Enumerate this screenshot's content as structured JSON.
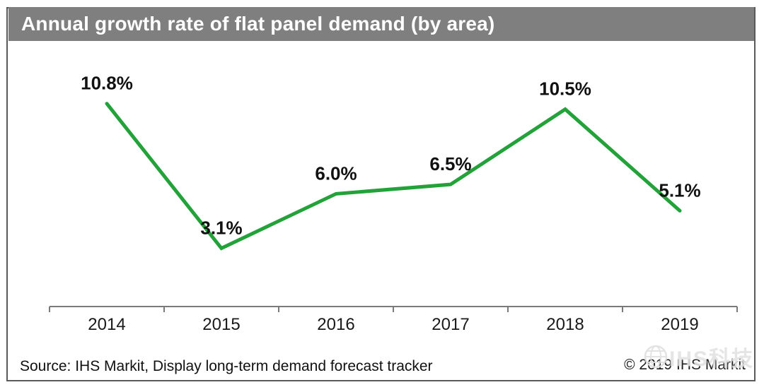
{
  "header": {
    "title": "Annual growth rate of flat panel demand (by area)",
    "bg_color": "#7f7f7f",
    "text_color": "#ffffff"
  },
  "chart_data": {
    "type": "line",
    "categories": [
      "2014",
      "2015",
      "2016",
      "2017",
      "2018",
      "2019"
    ],
    "values": [
      10.8,
      3.1,
      6.0,
      6.5,
      10.5,
      5.1
    ],
    "point_labels": [
      "10.8%",
      "3.1%",
      "6.0%",
      "6.5%",
      "10.5%",
      "5.1%"
    ],
    "title": "Annual growth rate of flat panel demand (by area)",
    "xlabel": "",
    "ylabel": "",
    "ylim": [
      0,
      12
    ],
    "grid": false,
    "legend": "none",
    "line_color": "#23a23a",
    "axis_color": "#7a7a7a",
    "label_color": "#111111",
    "tick_label_color": "#1a1a1a"
  },
  "footer": {
    "source": "Source: IHS Markit, Display long-term demand forecast tracker",
    "copyright": "© 2019 IHS Markit",
    "watermark": "IHS科技"
  }
}
